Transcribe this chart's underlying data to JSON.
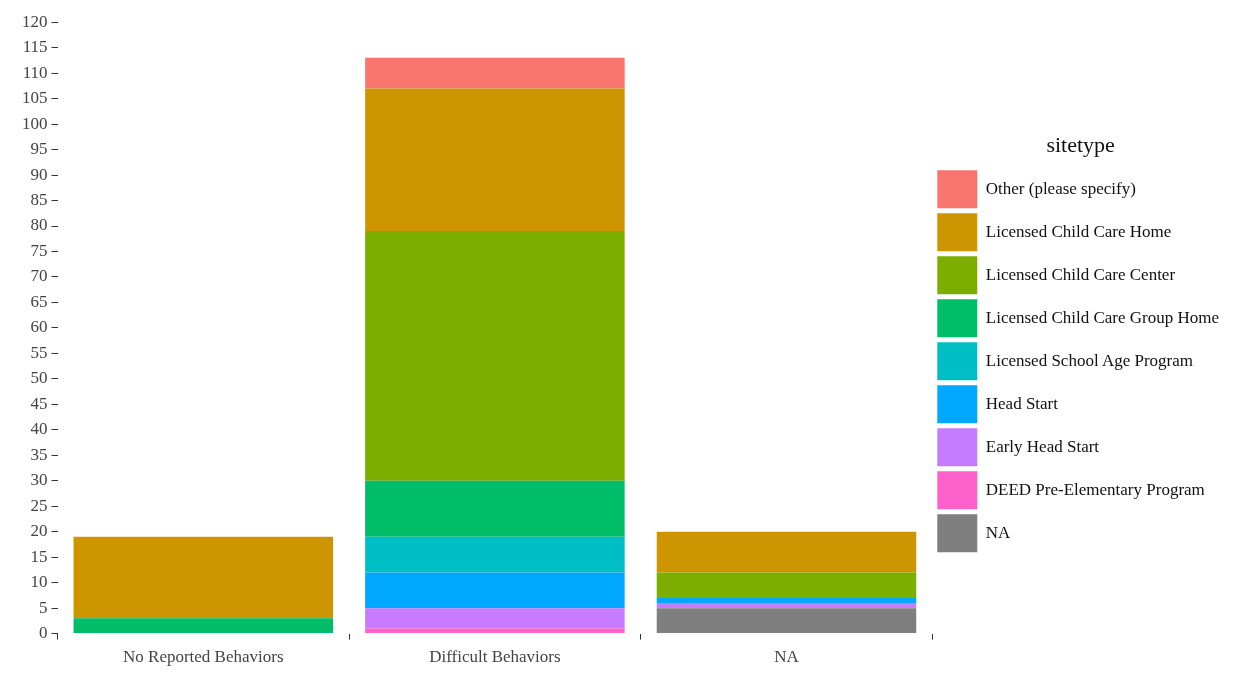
{
  "chart_data": {
    "type": "bar",
    "stacked": true,
    "legend": "right",
    "legend_title": "sitetype",
    "categories": [
      "No Reported Behaviors",
      "Difficult Behaviors",
      "NA"
    ],
    "ylim": [
      0,
      120
    ],
    "yticks": [
      0,
      5,
      10,
      15,
      20,
      25,
      30,
      35,
      40,
      45,
      50,
      55,
      60,
      65,
      70,
      75,
      80,
      85,
      90,
      95,
      100,
      105,
      110,
      115,
      120
    ],
    "series": [
      {
        "name": "NA",
        "color": "#7f7f7f",
        "values": [
          0,
          0,
          5
        ]
      },
      {
        "name": "DEED Pre-Elementary Program",
        "color": "#ff61cc",
        "values": [
          0,
          1,
          0
        ]
      },
      {
        "name": "Early Head Start",
        "color": "#c77cff",
        "values": [
          0,
          4,
          1
        ]
      },
      {
        "name": "Head Start",
        "color": "#00a9ff",
        "values": [
          0,
          7,
          1
        ]
      },
      {
        "name": "Licensed School Age Program",
        "color": "#00bfc4",
        "values": [
          0,
          7,
          0
        ]
      },
      {
        "name": "Licensed Child Care Group Home",
        "color": "#00be67",
        "values": [
          3,
          11,
          0
        ]
      },
      {
        "name": "Licensed Child Care Center",
        "color": "#7cae00",
        "values": [
          0,
          49,
          5
        ]
      },
      {
        "name": "Licensed Child Care Home",
        "color": "#cd9600",
        "values": [
          16,
          28,
          8
        ]
      },
      {
        "name": "Other (please specify)",
        "color": "#f8766d",
        "values": [
          0,
          6,
          0
        ]
      }
    ]
  }
}
